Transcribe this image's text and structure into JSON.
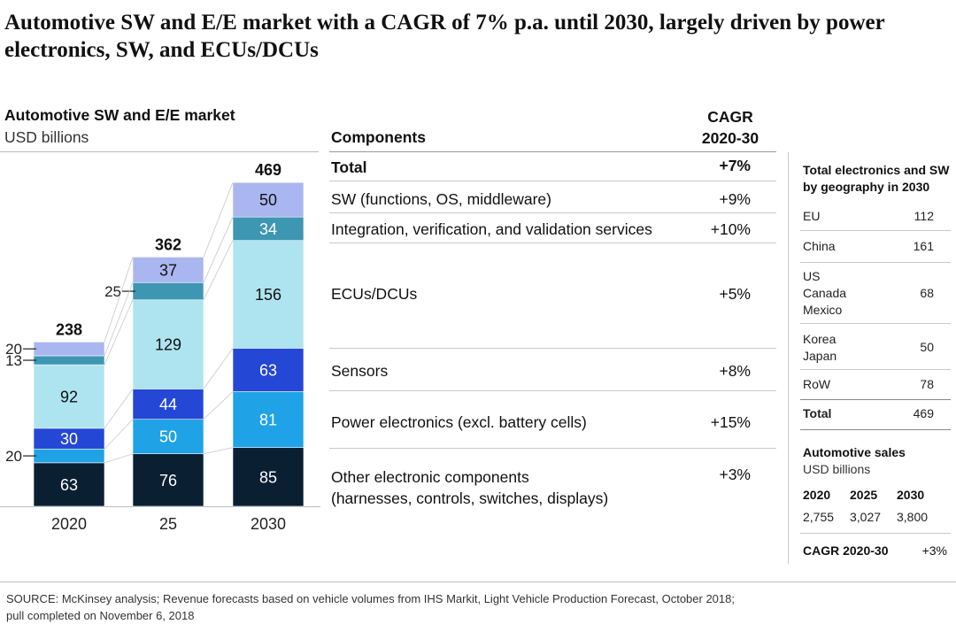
{
  "title": "Automotive SW and E/E market with a CAGR of 7% p.a. until 2030, largely driven by power electronics, SW, and ECUs/DCUs",
  "chart_data": {
    "type": "bar",
    "stacked": true,
    "title": "Automotive SW and E/E market",
    "subtitle": "USD billions",
    "categories": [
      "2020",
      "25",
      "2030"
    ],
    "totals": [
      "238",
      "362",
      "469"
    ],
    "series": [
      {
        "name": "Other electronic components",
        "color": "#0b1f33",
        "values": [
          63,
          76,
          85
        ]
      },
      {
        "name": "Power electronics",
        "color": "#1fa3e6",
        "values": [
          20,
          50,
          81
        ]
      },
      {
        "name": "Sensors",
        "color": "#2447d6",
        "values": [
          30,
          44,
          63
        ]
      },
      {
        "name": "ECUs/DCUs",
        "color": "#aee4f0",
        "values": [
          92,
          129,
          156
        ]
      },
      {
        "name": "Integration, verification, and validation services",
        "color": "#3d96b2",
        "values": [
          13,
          25,
          34
        ]
      },
      {
        "name": "SW",
        "color": "#aab6f0",
        "values": [
          20,
          37,
          50
        ]
      }
    ]
  },
  "components": {
    "header": "Components",
    "cagr_header_line1": "CAGR",
    "cagr_header_line2": "2020-30",
    "rows": [
      {
        "label": "Total",
        "cagr": "+7%"
      },
      {
        "label": "SW (functions, OS, middleware)",
        "cagr": "+9%"
      },
      {
        "label": "Integration, verification, and validation services",
        "cagr": "+10%"
      },
      {
        "label": "ECUs/DCUs",
        "cagr": "+5%"
      },
      {
        "label": "Sensors",
        "cagr": "+8%"
      },
      {
        "label": "Power electronics (excl. battery cells)",
        "cagr": "+15%"
      },
      {
        "label_line1": "Other electronic components",
        "label_line2": "(harnesses, controls, switches, displays)",
        "cagr": "+3%"
      }
    ]
  },
  "geography": {
    "title_line1": "Total electronics and SW",
    "title_line2": "by geography in 2030",
    "rows": [
      {
        "region": "EU",
        "value": "112"
      },
      {
        "region": "China",
        "value": "161"
      },
      {
        "region_lines": [
          "US",
          "Canada",
          "Mexico"
        ],
        "value": "68"
      },
      {
        "region_lines": [
          "Korea",
          "Japan"
        ],
        "value": "50"
      },
      {
        "region": "RoW",
        "value": "78"
      }
    ],
    "total_label": "Total",
    "total_value": "469"
  },
  "sales": {
    "title": "Automotive sales",
    "unit": "USD billions",
    "years": [
      "2020",
      "2025",
      "2030"
    ],
    "values": [
      "2,755",
      "3,027",
      "3,800"
    ],
    "cagr_label": "CAGR 2020-30",
    "cagr_value": "+3%"
  },
  "source_line1": "SOURCE: McKinsey analysis; Revenue forecasts based on vehicle volumes from IHS Markit, Light Vehicle Production Forecast, October 2018;",
  "source_line2": "pull completed on November 6, 2018"
}
